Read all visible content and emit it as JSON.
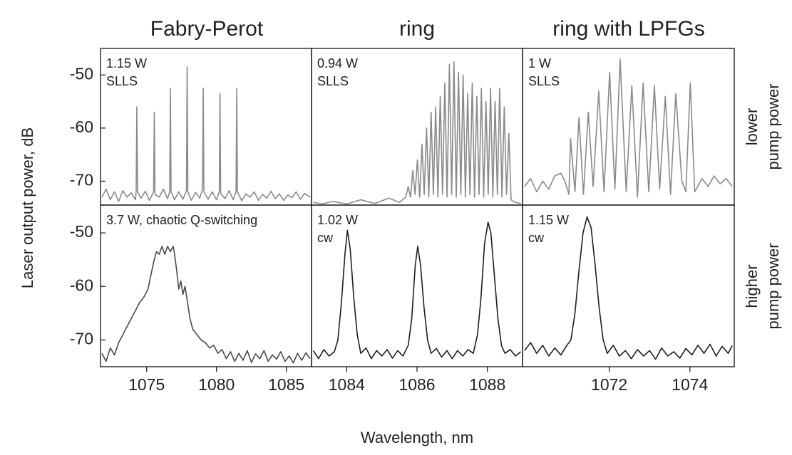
{
  "figure": {
    "column_titles": [
      "Fabry-Perot",
      "ring",
      "ring with LPFGs"
    ],
    "row_labels": [
      [
        "lower",
        "pump power"
      ],
      [
        "higher",
        "pump power"
      ]
    ],
    "y_label": "Laser output power, dB",
    "x_label": "Wavelength, nm"
  },
  "chart_data": [
    {
      "type": "line",
      "annotation": [
        "1.15 W",
        "SLLS"
      ],
      "xlim": [
        1071.7,
        1086.8
      ],
      "ylim": [
        -74.5,
        -45
      ],
      "yticks": [
        -50,
        -60,
        -70
      ],
      "x": [
        1071.8,
        1072.1,
        1072.4,
        1072.7,
        1073.0,
        1073.3,
        1073.6,
        1073.9,
        1074.2,
        1074.25,
        1074.3,
        1074.35,
        1074.6,
        1074.9,
        1075.2,
        1075.5,
        1075.55,
        1075.6,
        1075.9,
        1076.2,
        1076.5,
        1076.65,
        1076.7,
        1076.75,
        1077.0,
        1077.3,
        1077.6,
        1077.85,
        1077.9,
        1077.95,
        1078.2,
        1078.5,
        1078.8,
        1079.0,
        1079.05,
        1079.1,
        1079.4,
        1079.7,
        1080.0,
        1080.2,
        1080.25,
        1080.3,
        1080.6,
        1080.9,
        1081.2,
        1081.4,
        1081.45,
        1081.5,
        1081.8,
        1082.1,
        1082.4,
        1082.7,
        1083.0,
        1083.3,
        1083.6,
        1083.9,
        1084.2,
        1084.5,
        1084.8,
        1085.1,
        1085.4,
        1085.7,
        1086.0,
        1086.3,
        1086.7
      ],
      "series": [
        {
          "color": "#8a8a8a",
          "values": [
            -73,
            -71.5,
            -73.5,
            -72,
            -73.8,
            -71.8,
            -73,
            -72.2,
            -73.5,
            -72,
            -56,
            -72,
            -73.2,
            -71.9,
            -73.6,
            -72,
            -57,
            -72.5,
            -73,
            -71.5,
            -73.3,
            -72,
            -52.5,
            -72,
            -73.5,
            -72,
            -73.4,
            -71.8,
            -48.5,
            -72,
            -73.6,
            -72.1,
            -73.2,
            -71.5,
            -52.5,
            -72,
            -73.4,
            -72,
            -73.5,
            -72,
            -53.5,
            -72.3,
            -73.3,
            -71.8,
            -73.5,
            -72,
            -52.5,
            -72,
            -73.7,
            -72.4,
            -73,
            -72,
            -73.6,
            -72.5,
            -73.2,
            -71.9,
            -73.3,
            -72.4,
            -73.6,
            -72.6,
            -73.1,
            -72,
            -73.4,
            -72.3,
            -73
          ]
        }
      ]
    },
    {
      "type": "line",
      "annotation": [
        "0.94 W",
        "SLLS"
      ],
      "xlim": [
        1083,
        1089
      ],
      "ylim": [
        -74.5,
        -45
      ],
      "x": [
        1083.05,
        1083.3,
        1083.6,
        1084.0,
        1084.4,
        1084.8,
        1085.2,
        1085.5,
        1085.68,
        1085.75,
        1085.815,
        1085.88,
        1085.945,
        1086.01,
        1086.075,
        1086.14,
        1086.205,
        1086.27,
        1086.335,
        1086.4,
        1086.465,
        1086.53,
        1086.595,
        1086.66,
        1086.725,
        1086.79,
        1086.855,
        1086.92,
        1086.985,
        1087.05,
        1087.115,
        1087.18,
        1087.245,
        1087.31,
        1087.375,
        1087.44,
        1087.505,
        1087.57,
        1087.635,
        1087.7,
        1087.765,
        1087.83,
        1087.895,
        1087.96,
        1088.025,
        1088.09,
        1088.155,
        1088.22,
        1088.285,
        1088.35,
        1088.415,
        1088.48,
        1088.545,
        1088.61,
        1088.675,
        1088.8,
        1088.95
      ],
      "series": [
        {
          "color": "#8a8a8a",
          "values": [
            -74,
            -74.3,
            -73.8,
            -74.3,
            -73.5,
            -74.2,
            -73.2,
            -74,
            -73,
            -71,
            -73,
            -68,
            -72.5,
            -66,
            -73,
            -63,
            -72.5,
            -60,
            -73,
            -57,
            -72.5,
            -56,
            -73,
            -54,
            -72.5,
            -51.5,
            -73,
            -48,
            -72.5,
            -47.5,
            -73,
            -49.5,
            -72.5,
            -50,
            -73,
            -53.5,
            -72.5,
            -51.5,
            -73,
            -54,
            -72.5,
            -52.5,
            -73,
            -55,
            -72.5,
            -52.5,
            -73,
            -55,
            -72.5,
            -52.5,
            -73,
            -56,
            -72.5,
            -61,
            -73.5,
            -74,
            -74.2
          ]
        }
      ]
    },
    {
      "type": "line",
      "annotation": [
        "1 W",
        "SLLS"
      ],
      "xlim": [
        1069.85,
        1075.1
      ],
      "ylim": [
        -74.5,
        -45
      ],
      "x": [
        1069.9,
        1070.05,
        1070.2,
        1070.35,
        1070.5,
        1070.65,
        1070.8,
        1070.9,
        1071.0,
        1071.04,
        1071.15,
        1071.25,
        1071.36,
        1071.48,
        1071.6,
        1071.74,
        1071.87,
        1072.01,
        1072.14,
        1072.27,
        1072.42,
        1072.56,
        1072.7,
        1072.84,
        1072.98,
        1073.12,
        1073.25,
        1073.39,
        1073.52,
        1073.65,
        1073.8,
        1073.9,
        1074.01,
        1074.12,
        1074.3,
        1074.45,
        1074.6,
        1074.75,
        1074.9,
        1075.05
      ],
      "series": [
        {
          "color": "#8a8a8a",
          "values": [
            -71,
            -69.5,
            -72,
            -70,
            -71.5,
            -69,
            -68.5,
            -70,
            -72.5,
            -62,
            -72,
            -58,
            -72.5,
            -57,
            -71,
            -53,
            -72,
            -49.5,
            -71.5,
            -47,
            -72,
            -52,
            -73,
            -51.5,
            -72,
            -52,
            -71.5,
            -54,
            -72.5,
            -53.5,
            -70,
            -72,
            -51.5,
            -72,
            -69.5,
            -71,
            -69,
            -70.5,
            -69.5,
            -71
          ]
        }
      ]
    },
    {
      "type": "line",
      "annotation": [
        "3.7 W, chaotic Q-switching"
      ],
      "xlim": [
        1071.7,
        1086.8
      ],
      "ylim": [
        -75,
        -44.8
      ],
      "yticks": [
        -50,
        -60,
        -70
      ],
      "xticks": [
        1075,
        1080,
        1085
      ],
      "x": [
        1071.8,
        1072.1,
        1072.4,
        1072.7,
        1073.0,
        1073.3,
        1073.6,
        1073.9,
        1074.2,
        1074.5,
        1074.8,
        1075.1,
        1075.3,
        1075.5,
        1075.7,
        1075.9,
        1076.1,
        1076.3,
        1076.5,
        1076.7,
        1076.9,
        1077.0,
        1077.15,
        1077.3,
        1077.45,
        1077.6,
        1077.75,
        1077.9,
        1078.1,
        1078.3,
        1078.6,
        1078.9,
        1079.2,
        1079.5,
        1079.8,
        1080.1,
        1080.4,
        1080.7,
        1081.0,
        1081.3,
        1081.6,
        1081.9,
        1082.2,
        1082.5,
        1082.8,
        1083.1,
        1083.4,
        1083.7,
        1084.0,
        1084.3,
        1084.6,
        1084.9,
        1085.2,
        1085.5,
        1085.8,
        1086.1,
        1086.4,
        1086.7
      ],
      "series": [
        {
          "color": "#4a4a4a",
          "values": [
            -72.5,
            -74,
            -71.5,
            -72.8,
            -70.5,
            -69,
            -67.5,
            -66,
            -64.5,
            -63,
            -62,
            -60.5,
            -58,
            -55.5,
            -53.5,
            -54,
            -52.5,
            -54,
            -52.5,
            -53.5,
            -52.5,
            -54,
            -57,
            -60.5,
            -59,
            -61.5,
            -60,
            -62.5,
            -66,
            -68,
            -69,
            -70,
            -70.5,
            -71.5,
            -71,
            -72.5,
            -71.8,
            -73.5,
            -72.2,
            -74,
            -72.5,
            -73.8,
            -72,
            -74.2,
            -72.6,
            -73.5,
            -72,
            -74,
            -72.8,
            -73.6,
            -72.2,
            -74,
            -73,
            -74.3,
            -72.5,
            -73.8,
            -72.4,
            -73.5
          ]
        }
      ]
    },
    {
      "type": "line",
      "annotation": [
        "1.02 W",
        "cw"
      ],
      "xlim": [
        1083,
        1089
      ],
      "ylim": [
        -75,
        -44.8
      ],
      "xticks": [
        1084,
        1086,
        1088
      ],
      "x": [
        1083.05,
        1083.2,
        1083.35,
        1083.5,
        1083.65,
        1083.75,
        1083.85,
        1083.95,
        1084.02,
        1084.1,
        1084.2,
        1084.3,
        1084.4,
        1084.55,
        1084.7,
        1084.85,
        1085.0,
        1085.15,
        1085.3,
        1085.45,
        1085.6,
        1085.75,
        1085.85,
        1085.95,
        1086.02,
        1086.1,
        1086.2,
        1086.3,
        1086.4,
        1086.55,
        1086.7,
        1086.85,
        1087.0,
        1087.15,
        1087.3,
        1087.45,
        1087.6,
        1087.72,
        1087.82,
        1087.92,
        1088.02,
        1088.1,
        1088.2,
        1088.3,
        1088.4,
        1088.5,
        1088.65,
        1088.8,
        1088.95
      ],
      "series": [
        {
          "color": "#1e1e1e",
          "values": [
            -72,
            -73.5,
            -71.8,
            -73,
            -72.2,
            -70,
            -63,
            -54,
            -49.5,
            -53,
            -62,
            -69,
            -72.5,
            -71.5,
            -73.5,
            -72,
            -73,
            -71.8,
            -73.4,
            -72,
            -73,
            -71,
            -66,
            -56,
            -52.5,
            -56,
            -64,
            -70,
            -72.5,
            -71.6,
            -73.2,
            -72,
            -73.5,
            -72,
            -73,
            -71.8,
            -72.5,
            -69,
            -62,
            -52,
            -48,
            -50,
            -58,
            -66,
            -71,
            -72.5,
            -71.8,
            -73,
            -72.2
          ]
        }
      ]
    },
    {
      "type": "line",
      "annotation": [
        "1.15 W",
        "cw"
      ],
      "xlim": [
        1069.85,
        1075.1
      ],
      "ylim": [
        -75,
        -44.8
      ],
      "xticks": [
        1072,
        1074
      ],
      "x": [
        1069.9,
        1070.05,
        1070.2,
        1070.35,
        1070.5,
        1070.65,
        1070.8,
        1070.95,
        1071.05,
        1071.15,
        1071.25,
        1071.35,
        1071.45,
        1071.55,
        1071.65,
        1071.75,
        1071.85,
        1071.95,
        1072.1,
        1072.25,
        1072.4,
        1072.55,
        1072.7,
        1072.85,
        1073.0,
        1073.15,
        1073.3,
        1073.45,
        1073.6,
        1073.75,
        1073.9,
        1074.05,
        1074.2,
        1074.35,
        1074.5,
        1074.65,
        1074.8,
        1074.95,
        1075.05
      ],
      "series": [
        {
          "color": "#1e1e1e",
          "values": [
            -72,
            -70.5,
            -72.5,
            -71,
            -73,
            -71.5,
            -72.8,
            -71,
            -70,
            -65,
            -57,
            -50,
            -47,
            -49,
            -56,
            -64,
            -70,
            -72.5,
            -71,
            -73,
            -72,
            -73.5,
            -71.8,
            -73,
            -72,
            -73.6,
            -71.5,
            -73,
            -72.2,
            -73.4,
            -71.6,
            -72.8,
            -71,
            -72.5,
            -70.8,
            -73,
            -71.2,
            -72.5,
            -71
          ]
        }
      ]
    }
  ]
}
